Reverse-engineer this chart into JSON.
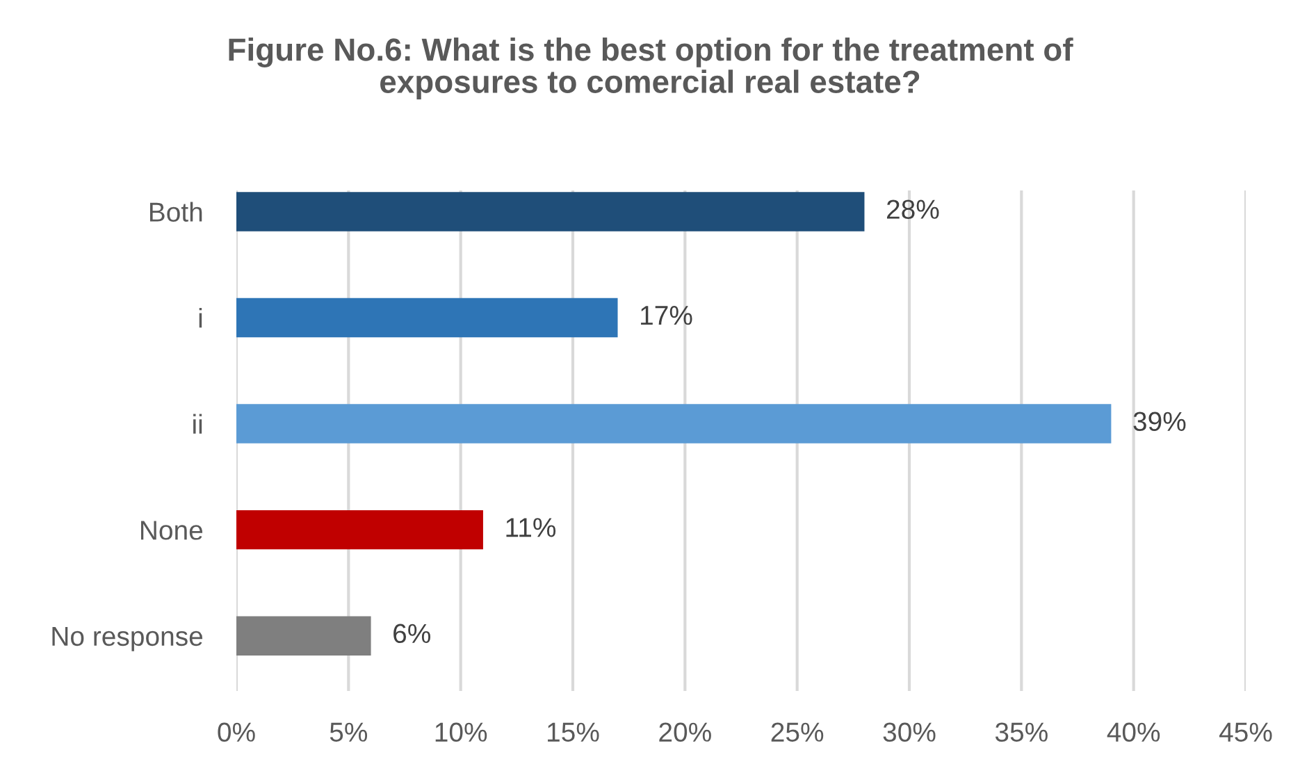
{
  "chart_data": {
    "type": "bar",
    "orientation": "horizontal",
    "title": "Figure No.6: What is the best option for the treatment of\nexposures to comercial real estate?",
    "categories": [
      "Both",
      "i",
      "ii",
      "None",
      "No response"
    ],
    "values": [
      28,
      17,
      39,
      11,
      6
    ],
    "colors": [
      "#1f4e79",
      "#2e75b6",
      "#5b9bd5",
      "#c00000",
      "#7f7f7f"
    ],
    "value_labels": [
      "28%",
      "17%",
      "39%",
      "11%",
      "6%"
    ],
    "xlim": [
      0,
      45
    ],
    "xticks": [
      {
        "value": 0,
        "label": "0%"
      },
      {
        "value": 5,
        "label": "5%"
      },
      {
        "value": 10,
        "label": "10%"
      },
      {
        "value": 15,
        "label": "15%"
      },
      {
        "value": 20,
        "label": "20%"
      },
      {
        "value": 25,
        "label": "25%"
      },
      {
        "value": 30,
        "label": "30%"
      },
      {
        "value": 35,
        "label": "35%"
      },
      {
        "value": 40,
        "label": "40%"
      },
      {
        "value": 45,
        "label": "45%"
      }
    ],
    "grid": "x",
    "legend": false
  }
}
